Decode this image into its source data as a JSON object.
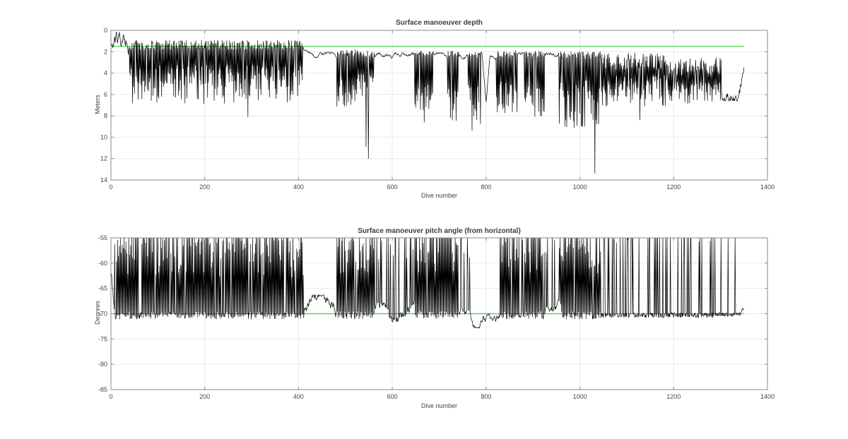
{
  "figure": {
    "background": "#ffffff",
    "axis_color": "#8a8a8a",
    "grid_color": "#e8e8e8",
    "text_color": "#464646"
  },
  "chart_data": [
    {
      "type": "line",
      "title": "Surface manoeuver depth",
      "xlabel": "Dive number",
      "ylabel": "Meters",
      "xlim": [
        0,
        1400
      ],
      "ylim": [
        0,
        14
      ],
      "y_reversed": true,
      "xticks": [
        0,
        200,
        400,
        600,
        800,
        1000,
        1200,
        1400
      ],
      "yticks": [
        0,
        2,
        4,
        6,
        8,
        10,
        12,
        14
      ],
      "grid": true,
      "legend": "none",
      "series_color": "#000000",
      "threshold": {
        "value": 1.5,
        "color": "#3ecf3e"
      },
      "data_x_range": [
        1,
        1350
      ],
      "seed": 20,
      "segments": [
        {
          "from": 1,
          "to": 40,
          "mode": "walk",
          "base": 1.0,
          "min": 0.15,
          "max": 2.3,
          "step": 0.6
        },
        {
          "from": 40,
          "to": 410,
          "mode": "spikes",
          "base": 1.35,
          "baseJitter": 0.45,
          "spikeMin": 3.2,
          "spikeMax": 6.9
        },
        {
          "from": 410,
          "to": 432,
          "mode": "ramp",
          "start": 1.75,
          "end": 2.3,
          "noise": 0.07
        },
        {
          "from": 432,
          "to": 482,
          "mode": "walk",
          "base": 2.3,
          "min": 2.05,
          "max": 2.55,
          "step": 0.13
        },
        {
          "from": 482,
          "to": 527,
          "mode": "spikes",
          "base": 2.1,
          "baseJitter": 0.3,
          "spikeMin": 4.5,
          "spikeMax": 7.4
        },
        {
          "from": 527,
          "to": 562,
          "mode": "spikes",
          "base": 2.2,
          "baseJitter": 0.3,
          "spikeMin": 4.0,
          "spikeMax": 7.0
        },
        {
          "from": 562,
          "to": 648,
          "mode": "walk",
          "base": 2.35,
          "min": 2.1,
          "max": 2.8,
          "step": 0.14
        },
        {
          "from": 648,
          "to": 688,
          "mode": "spikes",
          "base": 2.2,
          "baseJitter": 0.3,
          "spikeMin": 4.8,
          "spikeMax": 7.6
        },
        {
          "from": 688,
          "to": 718,
          "mode": "walk",
          "base": 2.3,
          "min": 2.1,
          "max": 2.6,
          "step": 0.12
        },
        {
          "from": 718,
          "to": 742,
          "mode": "spikes",
          "base": 2.2,
          "baseJitter": 0.3,
          "spikeMin": 5.5,
          "spikeMax": 8.6
        },
        {
          "from": 742,
          "to": 762,
          "mode": "walk",
          "base": 2.4,
          "min": 2.2,
          "max": 2.7,
          "step": 0.12
        },
        {
          "from": 762,
          "to": 792,
          "mode": "spikes",
          "base": 2.3,
          "baseJitter": 0.3,
          "spikeMin": 5.0,
          "spikeMax": 9.0
        },
        {
          "from": 792,
          "to": 808,
          "mode": "vdip",
          "start": 2.5,
          "low": 6.8
        },
        {
          "from": 808,
          "to": 822,
          "mode": "walk",
          "base": 2.4,
          "min": 2.2,
          "max": 2.7,
          "step": 0.12
        },
        {
          "from": 822,
          "to": 868,
          "mode": "spikes",
          "base": 2.2,
          "baseJitter": 0.3,
          "spikeMin": 4.8,
          "spikeMax": 7.8
        },
        {
          "from": 868,
          "to": 882,
          "mode": "walk",
          "base": 2.3,
          "min": 2.1,
          "max": 2.6,
          "step": 0.12
        },
        {
          "from": 882,
          "to": 926,
          "mode": "spikes",
          "base": 2.2,
          "baseJitter": 0.3,
          "spikeMin": 5.2,
          "spikeMax": 8.4
        },
        {
          "from": 926,
          "to": 956,
          "mode": "walk",
          "base": 2.35,
          "min": 2.1,
          "max": 2.7,
          "step": 0.14
        },
        {
          "from": 956,
          "to": 1046,
          "mode": "spikes",
          "base": 2.3,
          "baseJitter": 0.35,
          "spikeMin": 4.6,
          "spikeMax": 9.2
        },
        {
          "from": 1046,
          "to": 1186,
          "mode": "spikes",
          "base": 2.9,
          "baseJitter": 0.8,
          "spikeMin": 4.2,
          "spikeMax": 7.2
        },
        {
          "from": 1186,
          "to": 1302,
          "mode": "spikes",
          "base": 3.4,
          "baseJitter": 0.9,
          "spikeMin": 4.8,
          "spikeMax": 6.9
        },
        {
          "from": 1302,
          "to": 1338,
          "mode": "walk",
          "base": 5.7,
          "min": 4.8,
          "max": 6.6,
          "step": 0.5
        },
        {
          "from": 1338,
          "to": 1351,
          "mode": "ramp",
          "start": 6.1,
          "end": 3.6,
          "noise": 0.4
        }
      ],
      "extremes": [
        {
          "x": 292,
          "y": 8.1
        },
        {
          "x": 544,
          "y": 10.9
        },
        {
          "x": 549,
          "y": 12.0
        },
        {
          "x": 668,
          "y": 8.6
        },
        {
          "x": 770,
          "y": 9.4
        },
        {
          "x": 1003,
          "y": 8.9
        },
        {
          "x": 1032,
          "y": 13.4
        },
        {
          "x": 1128,
          "y": 8.4
        }
      ]
    },
    {
      "type": "line",
      "title": "Surface manoeuver pitch angle (from horizontal)",
      "xlabel": "Dive number",
      "ylabel": "Degrees",
      "xlim": [
        0,
        1400
      ],
      "ylim": [
        -85,
        -55
      ],
      "y_reversed": false,
      "xticks": [
        0,
        200,
        400,
        600,
        800,
        1000,
        1200,
        1400
      ],
      "yticks": [
        -85,
        -80,
        -75,
        -70,
        -65,
        -60,
        -55
      ],
      "grid": true,
      "legend": "none",
      "series_color": "#000000",
      "threshold": {
        "value": -70,
        "color": "#3ecf3e"
      },
      "data_x_range": [
        1,
        1350
      ],
      "seed": 77,
      "segments": [
        {
          "from": 1,
          "to": 8,
          "mode": "ramp",
          "start": -62,
          "end": -70.3,
          "noise": 0.5
        },
        {
          "from": 8,
          "to": 412,
          "mode": "spikes",
          "base": -70.4,
          "baseJitter": 0.7,
          "spikeMin": -63,
          "spikeMax": -47
        },
        {
          "from": 412,
          "to": 482,
          "mode": "walk",
          "base": -69.3,
          "min": -71.8,
          "max": -66.3,
          "step": 0.9
        },
        {
          "from": 482,
          "to": 562,
          "mode": "spikes",
          "base": -70.3,
          "baseJitter": 0.8,
          "spikeMin": -62,
          "spikeMax": -48
        },
        {
          "from": 562,
          "to": 648,
          "mode": "mix",
          "base": -68.2,
          "min": -71.6,
          "max": -64.0,
          "step": 0.9,
          "spikeProb": 0.28,
          "spikeMin": -60,
          "spikeMax": -47
        },
        {
          "from": 648,
          "to": 742,
          "mode": "spikes",
          "base": -70.2,
          "baseJitter": 0.8,
          "spikeMin": -62,
          "spikeMax": -48
        },
        {
          "from": 742,
          "to": 768,
          "mode": "mix",
          "base": -69.5,
          "min": -71.5,
          "max": -66.5,
          "step": 0.7,
          "spikeProb": 0.15,
          "spikeMin": -60,
          "spikeMax": -50
        },
        {
          "from": 768,
          "to": 830,
          "mode": "walk",
          "base": -71.0,
          "min": -72.8,
          "max": -68.8,
          "step": 0.6
        },
        {
          "from": 830,
          "to": 926,
          "mode": "spikes",
          "base": -70.3,
          "baseJitter": 0.8,
          "spikeMin": -62,
          "spikeMax": -48
        },
        {
          "from": 926,
          "to": 960,
          "mode": "mix",
          "base": -69.6,
          "min": -71.6,
          "max": -66.8,
          "step": 0.7,
          "spikeProb": 0.2,
          "spikeMin": -61,
          "spikeMax": -50
        },
        {
          "from": 960,
          "to": 1046,
          "mode": "spikes",
          "base": -70.3,
          "baseJitter": 0.8,
          "spikeMin": -62,
          "spikeMax": -48
        },
        {
          "from": 1046,
          "to": 1286,
          "mode": "sparse",
          "base": -70.3,
          "baseJitter": 0.5,
          "spikeProb": 0.2,
          "spikeMin": -56,
          "spikeMax": -46
        },
        {
          "from": 1286,
          "to": 1344,
          "mode": "sparse",
          "base": -70.1,
          "baseJitter": 0.4,
          "spikeProb": 0.07,
          "spikeMin": -56,
          "spikeMax": -48
        },
        {
          "from": 1344,
          "to": 1351,
          "mode": "walk",
          "base": -70,
          "min": -71,
          "max": -69,
          "step": 0.4
        }
      ],
      "extremes": []
    }
  ]
}
